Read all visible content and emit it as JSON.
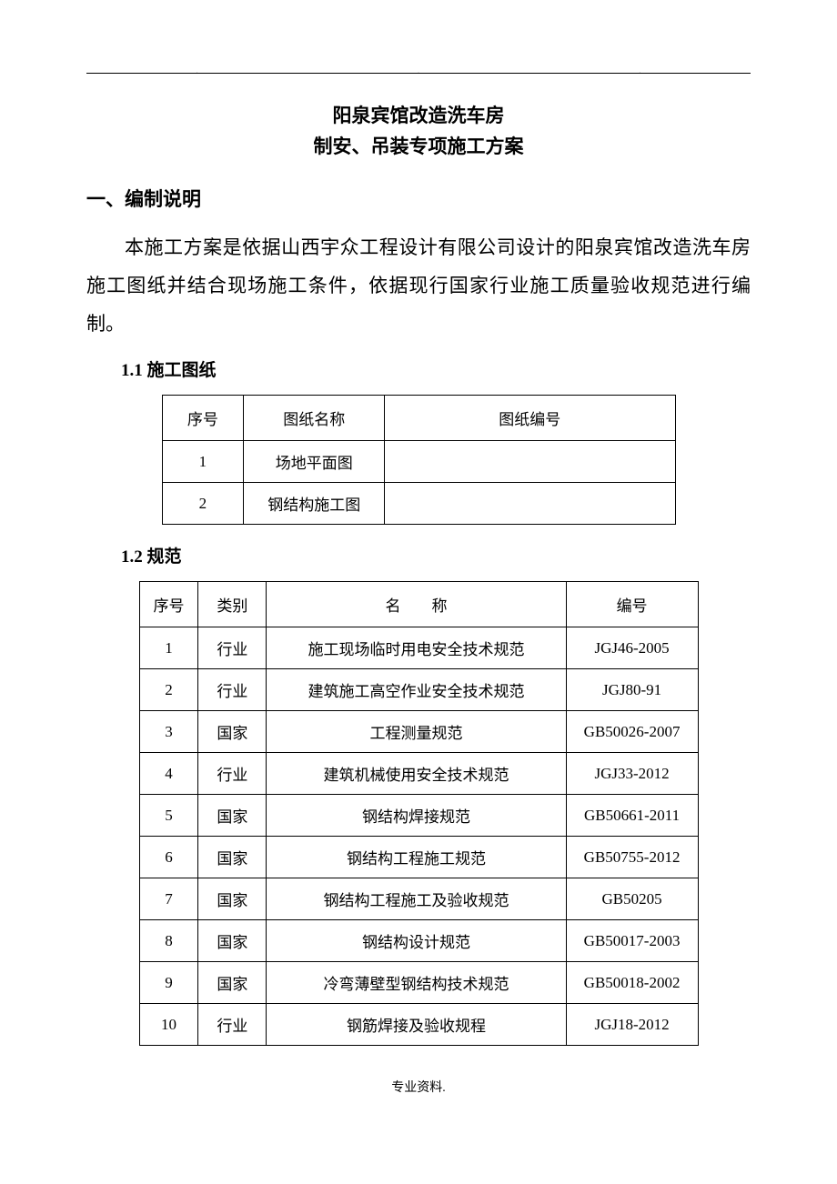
{
  "header": {
    "dot": "."
  },
  "title": {
    "line1": "阳泉宾馆改造洗车房",
    "line2": "制安、吊装专项施工方案"
  },
  "section1": {
    "heading": "一、编制说明",
    "paragraph": "本施工方案是依据山西宇众工程设计有限公司设计的阳泉宾馆改造洗车房施工图纸并结合现场施工条件，依据现行国家行业施工质量验收规范进行编制。"
  },
  "drawings": {
    "heading": "1.1 施工图纸",
    "columns": {
      "seq": "序号",
      "name": "图纸名称",
      "number": "图纸编号"
    },
    "rows": [
      {
        "seq": "1",
        "name": "场地平面图",
        "number": ""
      },
      {
        "seq": "2",
        "name": "钢结构施工图",
        "number": ""
      }
    ]
  },
  "standards": {
    "heading": "1.2 规范",
    "columns": {
      "seq": "序号",
      "category": "类别",
      "name": "名　　称",
      "number": "编号"
    },
    "rows": [
      {
        "seq": "1",
        "category": "行业",
        "name": "施工现场临时用电安全技术规范",
        "number": "JGJ46-2005"
      },
      {
        "seq": "2",
        "category": "行业",
        "name": "建筑施工高空作业安全技术规范",
        "number": "JGJ80-91"
      },
      {
        "seq": "3",
        "category": "国家",
        "name": "工程测量规范",
        "number": "GB50026-2007"
      },
      {
        "seq": "4",
        "category": "行业",
        "name": "建筑机械使用安全技术规范",
        "number": "JGJ33-2012"
      },
      {
        "seq": "5",
        "category": "国家",
        "name": "钢结构焊接规范",
        "number": "GB50661-2011"
      },
      {
        "seq": "6",
        "category": "国家",
        "name": "钢结构工程施工规范",
        "number": "GB50755-2012"
      },
      {
        "seq": "7",
        "category": "国家",
        "name": "钢结构工程施工及验收规范",
        "number": "GB50205"
      },
      {
        "seq": "8",
        "category": "国家",
        "name": "钢结构设计规范",
        "number": "GB50017-2003"
      },
      {
        "seq": "9",
        "category": "国家",
        "name": "冷弯薄壁型钢结构技术规范",
        "number": "GB50018-2002"
      },
      {
        "seq": "10",
        "category": "行业",
        "name": "钢筋焊接及验收规程",
        "number": "JGJ18-2012"
      }
    ]
  },
  "footer": {
    "text": "专业资料."
  }
}
